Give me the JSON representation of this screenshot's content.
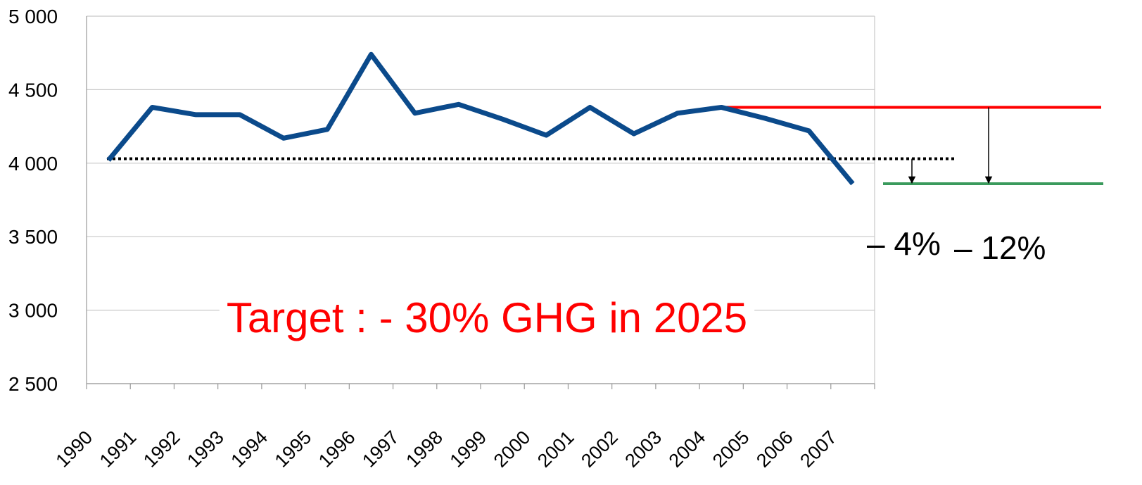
{
  "chart_data": {
    "type": "line",
    "categories": [
      "1990",
      "1991",
      "1992",
      "1993",
      "1994",
      "1995",
      "1996",
      "1997",
      "1998",
      "1999",
      "2000",
      "2001",
      "2002",
      "2003",
      "2004",
      "2005",
      "2006",
      "2007"
    ],
    "series": [
      {
        "color": "#0b4a8b",
        "values": [
          4020,
          4380,
          4330,
          4330,
          4170,
          4230,
          4740,
          4340,
          4400,
          4300,
          4190,
          4380,
          4200,
          4340,
          4380,
          4305,
          4220,
          3860
        ]
      }
    ],
    "ylim": [
      2500,
      5000
    ],
    "yticks": [
      {
        "value": 2500,
        "label": "2 500"
      },
      {
        "value": 3000,
        "label": "3 000"
      },
      {
        "value": 3500,
        "label": "3 500"
      },
      {
        "value": 4000,
        "label": "4 000"
      },
      {
        "value": 4500,
        "label": "4 500"
      },
      {
        "value": 5000,
        "label": "5 000"
      }
    ],
    "grid": true,
    "reference_lines": [
      {
        "value": 4030,
        "color": "#000000",
        "style": "dotted"
      },
      {
        "value": 4380,
        "color": "#ff0000",
        "style": "solid"
      },
      {
        "value": 3860,
        "color": "#3a9a5c",
        "style": "solid"
      }
    ],
    "annotations": [
      "– 4%",
      "– 12%",
      "Target : - 30% GHG in 2025"
    ]
  }
}
